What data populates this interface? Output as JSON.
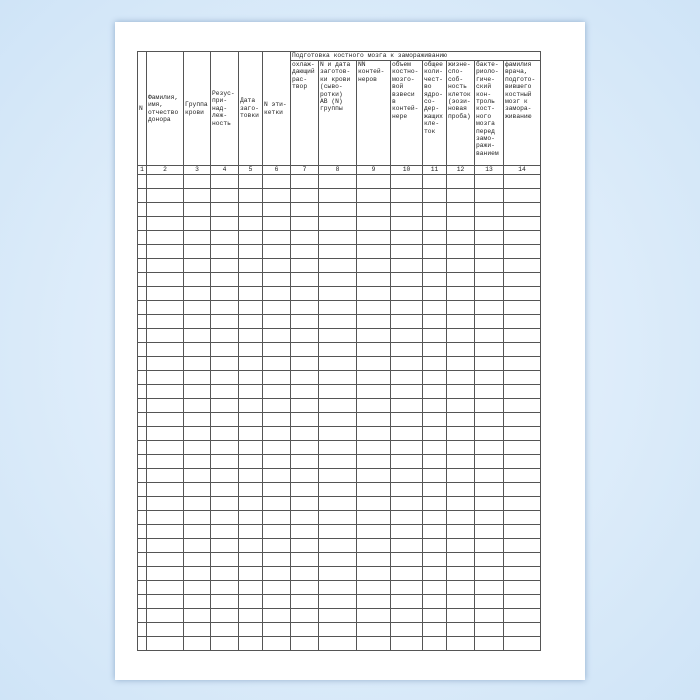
{
  "table": {
    "group_header": "Подготовка костного мозга к замораживанию",
    "columns": [
      "N",
      "Фамилия,\nимя,\nотчество\nдонора",
      "Группа\nкрови",
      "Резус-\nпри-\nнад-\nлеж-\nность",
      "Дата\nзаго-\nтовки",
      "N эти-\nкетки",
      "охлаж-\nдающий\nрас-\nтвор",
      "N и дата\nзаготов-\nки крови\n(сыво-\nротки)\nAB (N)\nгруппы",
      "NN\nконтей-\nнеров",
      "объем\nкостно-\nмозго-\nвой\nвзвеси\nв\nконтей-\nнере",
      "общее\nколи-\nчест-\nво\nядро-\nсо-\nдер-\nжащих\nкле-\nток",
      "жизне-\nспо-\nсоб-\nность\nклеток\n(эози-\nновая\nпроба)",
      "бакте-\nриоло-\nгиче-\nский\nкон-\nтроль\nкост-\nного\nмозга\nперед\nзамо-\nражи-\nванием",
      "фамилия\nврача,\nподгото-\nвившего\nкостный\nмозг к\nзамора-\nживанию"
    ],
    "column_numbers": [
      "1",
      "2",
      "3",
      "4",
      "5",
      "6",
      "7",
      "8",
      "9",
      "10",
      "11",
      "12",
      "13",
      "14"
    ]
  }
}
